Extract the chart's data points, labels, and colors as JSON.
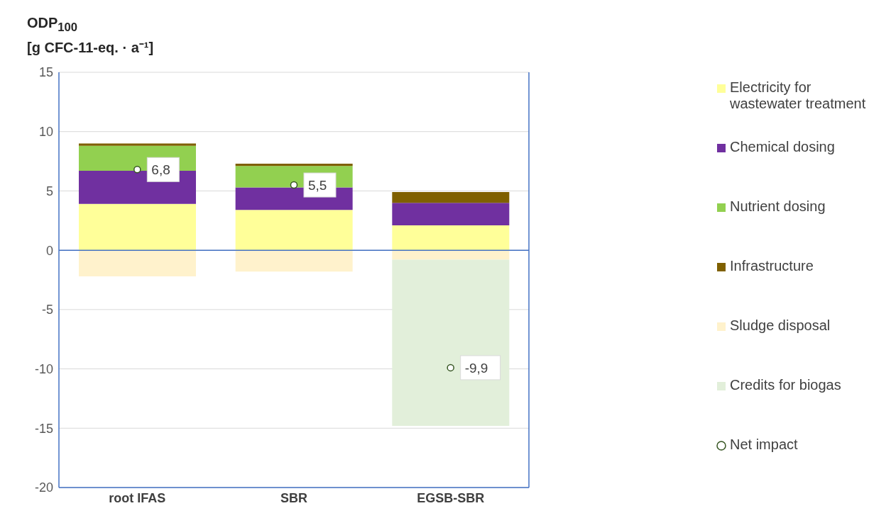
{
  "chart_data": {
    "type": "bar",
    "stacked": true,
    "ylabel": "ODP$_{100}$\n[g CFC-11-eq. · a⁻¹]",
    "categories": [
      "root IFAS",
      "SBR",
      "EGSB-SBR"
    ],
    "series": [
      {
        "name": "Electricity for wastewater treatment",
        "color": "#ffff99",
        "values": [
          3.9,
          3.4,
          2.1
        ]
      },
      {
        "name": "Chemical dosing",
        "color": "#7030a0",
        "values": [
          2.8,
          1.9,
          1.9
        ]
      },
      {
        "name": "Nutrient dosing",
        "color": "#92d050",
        "values": [
          2.1,
          1.8,
          0
        ]
      },
      {
        "name": "Infrastructure",
        "color": "#7f6000",
        "values": [
          0.2,
          0.2,
          0.9
        ]
      },
      {
        "name": "Sludge disposal",
        "color": "#fff2cc",
        "values": [
          -2.2,
          -1.8,
          -0.8
        ]
      },
      {
        "name": "Credits for biogas",
        "color": "#e2efda",
        "values": [
          0,
          0,
          -14
        ]
      },
      {
        "name": "Net impact",
        "type": "scatter",
        "color": "#375623",
        "values": [
          6.8,
          5.5,
          -9.9
        ],
        "value_labels": [
          "6,8",
          "5,5",
          "-9,9"
        ]
      }
    ],
    "ylim": [
      -20,
      15
    ],
    "yticks": [
      -20,
      -15,
      -10,
      -5,
      0,
      5,
      10,
      15
    ],
    "grid": "y",
    "legend": "right",
    "marker": "circle",
    "ref_lines": [
      {
        "axis": "y",
        "value": 0,
        "color": "#4472c4"
      }
    ]
  }
}
